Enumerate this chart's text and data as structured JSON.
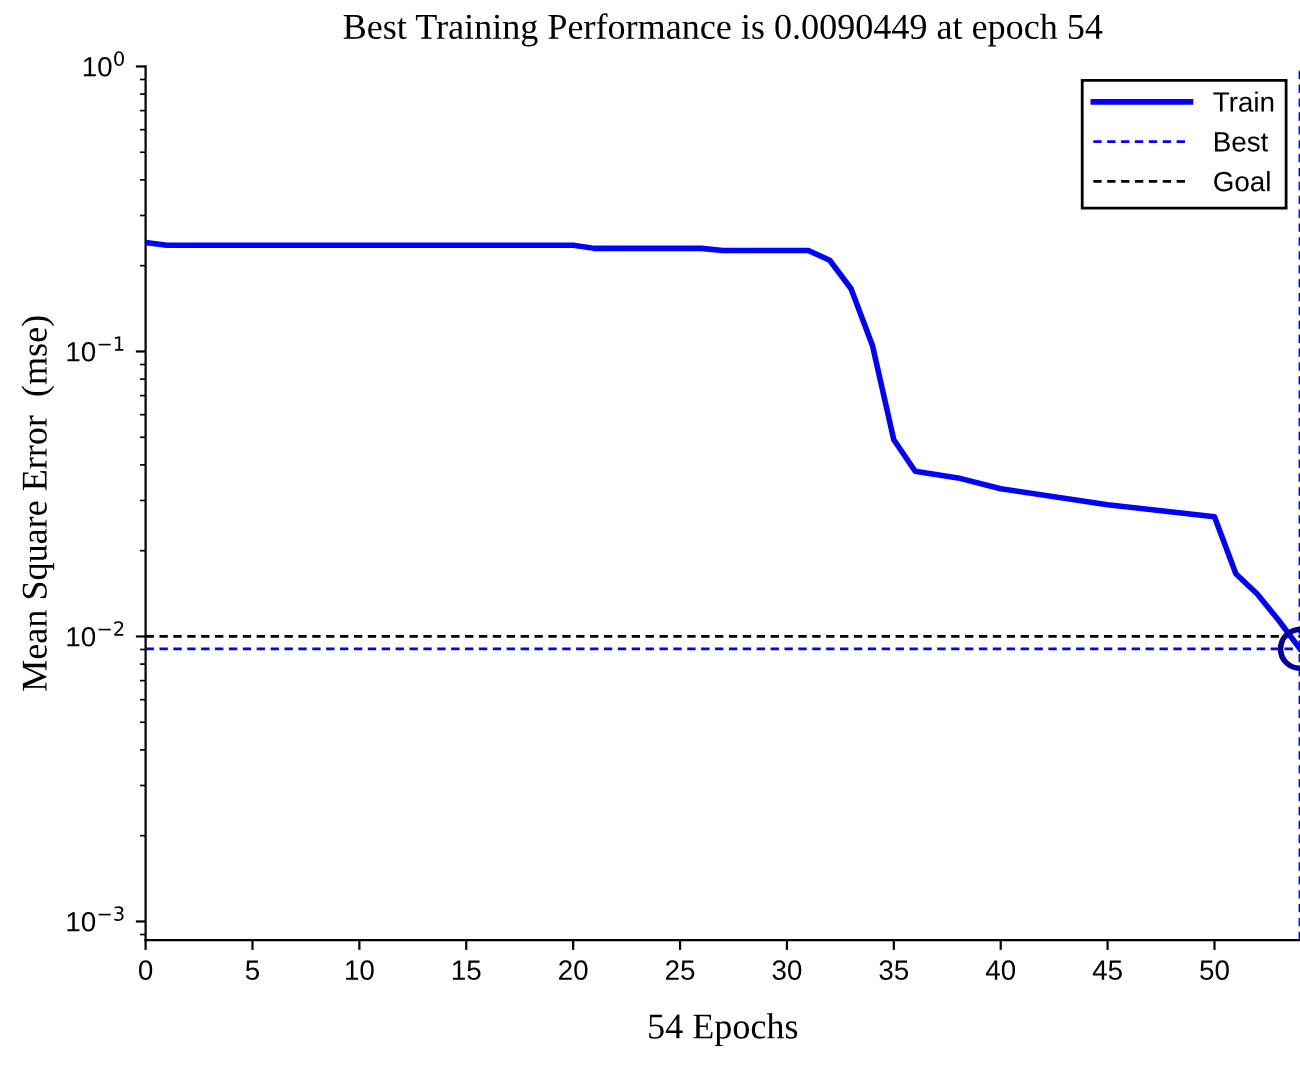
{
  "chart_data": {
    "type": "line",
    "title": "Best Training Performance is 0.0090449 at epoch 54",
    "xlabel": "54 Epochs",
    "ylabel": "Mean Square Error  (mse)",
    "log": "y",
    "xlim": [
      0,
      54
    ],
    "ylim": [
      0.00086,
      1
    ],
    "xticks": [
      0,
      5,
      10,
      15,
      20,
      25,
      30,
      35,
      40,
      45,
      50
    ],
    "yticks": [
      {
        "value": 0.001,
        "label": "10$^{−3}$"
      },
      {
        "value": 0.01,
        "label": "10$^{−2}$"
      },
      {
        "value": 0.1,
        "label": "10$^{−1}$"
      },
      {
        "value": 1,
        "label": "10$^{0}$"
      }
    ],
    "grid": false,
    "legend": "top right",
    "line_style": "solid",
    "marker": "none",
    "series": [
      {
        "name": "Train",
        "color": "#0000ff",
        "x": [
          0,
          1,
          20,
          21,
          26,
          27,
          31,
          32,
          33,
          34,
          35,
          36,
          38,
          40,
          45,
          50,
          51,
          52,
          53,
          54
        ],
        "values": [
          0.241,
          0.236,
          0.236,
          0.23,
          0.23,
          0.226,
          0.226,
          0.209,
          0.166,
          0.105,
          0.049,
          0.038,
          0.036,
          0.033,
          0.029,
          0.0263,
          0.0166,
          0.0141,
          0.0114,
          0.0090449
        ]
      },
      {
        "type": "scatter",
        "marker": "circle",
        "color": "#000099",
        "x": [
          54
        ],
        "values": [
          0.0090449
        ]
      }
    ],
    "ref_lines": [
      {
        "axis": "y",
        "value": 0.0090449,
        "label": "Best",
        "color": "#0000ff",
        "line_style": "dashed"
      },
      {
        "axis": "y",
        "value": 0.01,
        "label": "Goal",
        "color": "#000000",
        "line_style": "dashed"
      },
      {
        "axis": "x",
        "value": 54,
        "label": null,
        "color": "#0000ff",
        "line_style": "dashed"
      }
    ]
  }
}
